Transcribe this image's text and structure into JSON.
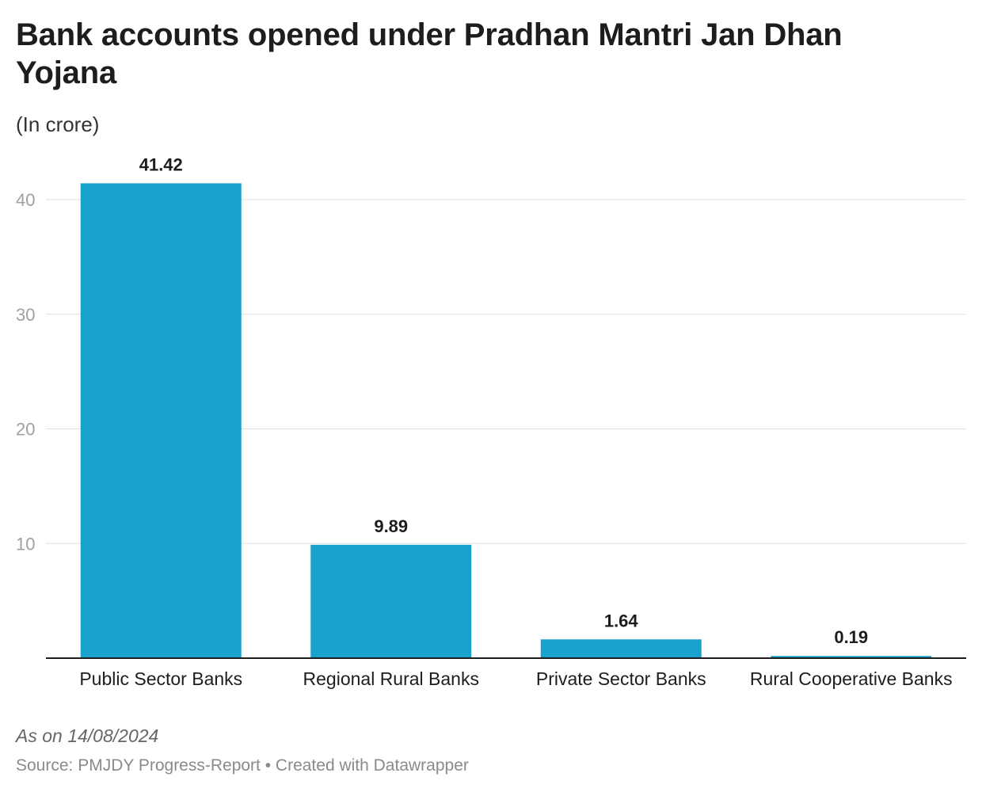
{
  "title": "Bank accounts opened under Pradhan Mantri Jan Dhan Yojana",
  "subtitle": "(In crore)",
  "footer": {
    "note": "As on 14/08/2024",
    "source": "Source: PMJDY Progress-Report • Created with Datawrapper"
  },
  "colors": {
    "bar": "#1aa1cc"
  },
  "chart_data": {
    "type": "bar",
    "categories": [
      "Public Sector Banks",
      "Regional Rural Banks",
      "Private Sector Banks",
      "Rural Cooperative Banks"
    ],
    "values": [
      41.42,
      9.89,
      1.64,
      0.19
    ],
    "value_labels": [
      "41.42",
      "9.89",
      "1.64",
      "0.19"
    ],
    "title": "Bank accounts opened under Pradhan Mantri Jan Dhan Yojana",
    "subtitle": "(In crore)",
    "xlabel": "",
    "ylabel": "",
    "yticks": [
      10,
      20,
      30,
      40
    ],
    "ylim": [
      0,
      40
    ],
    "grid": true,
    "legend": "none"
  }
}
